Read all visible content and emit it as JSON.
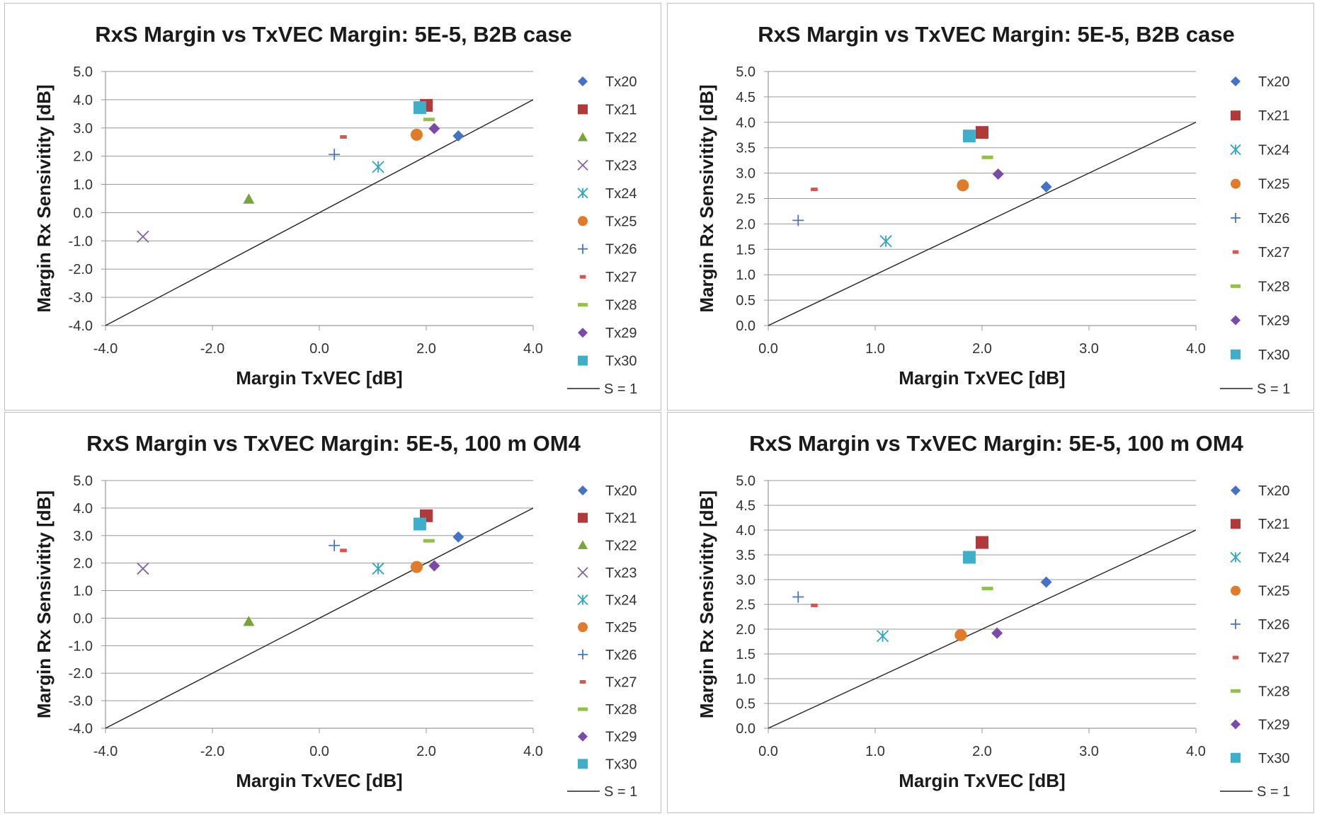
{
  "colors": {
    "Tx20": "#4472c4",
    "Tx21": "#b03a3a",
    "Tx22": "#7aa43a",
    "Tx23": "#8064a2",
    "Tx24": "#31a6bd",
    "Tx25": "#e07b2c",
    "Tx26": "#4a73c2",
    "Tx27": "#d9534f",
    "Tx28": "#92c04a",
    "Tx29": "#7a4aa8",
    "Tx30": "#3fafc9",
    "S1": "#222222",
    "grid": "#9a9a9a"
  },
  "markers": {
    "Tx20": "diamond",
    "Tx21": "square",
    "Tx22": "triangle",
    "Tx23": "x",
    "Tx24": "star",
    "Tx25": "circle",
    "Tx26": "plus",
    "Tx27": "dash-small",
    "Tx28": "dash",
    "Tx29": "diamond",
    "Tx30": "square"
  },
  "chart_data": [
    {
      "type": "scatter",
      "title": "RxS Margin vs TxVEC Margin: 5E-5, B2B case",
      "xlabel": "Margin TxVEC [dB]",
      "ylabel": "Margin Rx Sensivitity [dB]",
      "xlim": [
        -4,
        4
      ],
      "ylim": [
        -4,
        5
      ],
      "xticks": [
        "-4.0",
        "-2.0",
        "0.0",
        "2.0",
        "4.0"
      ],
      "yticks": [
        "-4.0",
        "-3.0",
        "-2.0",
        "-1.0",
        "0.0",
        "1.0",
        "2.0",
        "3.0",
        "4.0",
        "5.0"
      ],
      "grid": true,
      "legend_position": "right",
      "series": [
        {
          "name": "Tx20",
          "x": [
            2.6
          ],
          "y": [
            2.72
          ]
        },
        {
          "name": "Tx21",
          "x": [
            2.0
          ],
          "y": [
            3.8
          ]
        },
        {
          "name": "Tx22",
          "x": [
            -1.32
          ],
          "y": [
            0.48
          ]
        },
        {
          "name": "Tx23",
          "x": [
            -3.3
          ],
          "y": [
            -0.85
          ]
        },
        {
          "name": "Tx24",
          "x": [
            1.1
          ],
          "y": [
            1.62
          ]
        },
        {
          "name": "Tx25",
          "x": [
            1.82
          ],
          "y": [
            2.76
          ]
        },
        {
          "name": "Tx26",
          "x": [
            0.28
          ],
          "y": [
            2.06
          ]
        },
        {
          "name": "Tx27",
          "x": [
            0.45
          ],
          "y": [
            2.68
          ]
        },
        {
          "name": "Tx28",
          "x": [
            2.05
          ],
          "y": [
            3.3
          ]
        },
        {
          "name": "Tx29",
          "x": [
            2.15
          ],
          "y": [
            2.98
          ]
        },
        {
          "name": "Tx30",
          "x": [
            1.88
          ],
          "y": [
            3.72
          ]
        }
      ],
      "line": {
        "name": "S = 1",
        "x": [
          -4,
          4
        ],
        "y": [
          -4,
          4
        ]
      }
    },
    {
      "type": "scatter",
      "title": "RxS Margin vs TxVEC Margin: 5E-5, B2B case",
      "xlabel": "Margin TxVEC [dB]",
      "ylabel": "Margin Rx Sensivitity [dB]",
      "xlim": [
        0,
        4
      ],
      "ylim": [
        0,
        5
      ],
      "xticks": [
        "0.0",
        "1.0",
        "2.0",
        "3.0",
        "4.0"
      ],
      "yticks": [
        "0.0",
        "0.5",
        "1.0",
        "1.5",
        "2.0",
        "2.5",
        "3.0",
        "3.5",
        "4.0",
        "4.5",
        "5.0"
      ],
      "grid": true,
      "legend_position": "right",
      "series": [
        {
          "name": "Tx20",
          "x": [
            2.6
          ],
          "y": [
            2.73
          ]
        },
        {
          "name": "Tx21",
          "x": [
            2.0
          ],
          "y": [
            3.8
          ]
        },
        {
          "name": "Tx24",
          "x": [
            1.1
          ],
          "y": [
            1.66
          ]
        },
        {
          "name": "Tx25",
          "x": [
            1.82
          ],
          "y": [
            2.76
          ]
        },
        {
          "name": "Tx26",
          "x": [
            0.28
          ],
          "y": [
            2.07
          ]
        },
        {
          "name": "Tx27",
          "x": [
            0.43
          ],
          "y": [
            2.68
          ]
        },
        {
          "name": "Tx28",
          "x": [
            2.05
          ],
          "y": [
            3.31
          ]
        },
        {
          "name": "Tx29",
          "x": [
            2.15
          ],
          "y": [
            2.98
          ]
        },
        {
          "name": "Tx30",
          "x": [
            1.88
          ],
          "y": [
            3.73
          ]
        }
      ],
      "line": {
        "name": "S = 1",
        "x": [
          0,
          4
        ],
        "y": [
          0,
          4
        ]
      }
    },
    {
      "type": "scatter",
      "title": "RxS Margin vs TxVEC  Margin:  5E-5, 100 m OM4",
      "xlabel": "Margin TxVEC [dB]",
      "ylabel": "Margin Rx Sensivitity [dB]",
      "xlim": [
        -4,
        4
      ],
      "ylim": [
        -4,
        5
      ],
      "xticks": [
        "-4.0",
        "-2.0",
        "0.0",
        "2.0",
        "4.0"
      ],
      "yticks": [
        "-4.0",
        "-3.0",
        "-2.0",
        "-1.0",
        "0.0",
        "1.0",
        "2.0",
        "3.0",
        "4.0",
        "5.0"
      ],
      "grid": true,
      "legend_position": "right",
      "series": [
        {
          "name": "Tx20",
          "x": [
            2.6
          ],
          "y": [
            2.95
          ]
        },
        {
          "name": "Tx21",
          "x": [
            2.0
          ],
          "y": [
            3.72
          ]
        },
        {
          "name": "Tx22",
          "x": [
            -1.32
          ],
          "y": [
            -0.12
          ]
        },
        {
          "name": "Tx23",
          "x": [
            -3.3
          ],
          "y": [
            1.8
          ]
        },
        {
          "name": "Tx24",
          "x": [
            1.1
          ],
          "y": [
            1.8
          ]
        },
        {
          "name": "Tx25",
          "x": [
            1.82
          ],
          "y": [
            1.86
          ]
        },
        {
          "name": "Tx26",
          "x": [
            0.28
          ],
          "y": [
            2.64
          ]
        },
        {
          "name": "Tx27",
          "x": [
            0.45
          ],
          "y": [
            2.46
          ]
        },
        {
          "name": "Tx28",
          "x": [
            2.05
          ],
          "y": [
            2.81
          ]
        },
        {
          "name": "Tx29",
          "x": [
            2.15
          ],
          "y": [
            1.9
          ]
        },
        {
          "name": "Tx30",
          "x": [
            1.88
          ],
          "y": [
            3.42
          ]
        }
      ],
      "line": {
        "name": "S = 1",
        "x": [
          -4,
          4
        ],
        "y": [
          -4,
          4
        ]
      }
    },
    {
      "type": "scatter",
      "title": "RxS Margin vs TxVEC  Margin:  5E-5, 100 m OM4",
      "xlabel": "Margin TxVEC [dB]",
      "ylabel": "Margin Rx Sensivitity [dB]",
      "xlim": [
        0,
        4
      ],
      "ylim": [
        0,
        5
      ],
      "xticks": [
        "0.0",
        "1.0",
        "2.0",
        "3.0",
        "4.0"
      ],
      "yticks": [
        "0.0",
        "0.5",
        "1.0",
        "1.5",
        "2.0",
        "2.5",
        "3.0",
        "3.5",
        "4.0",
        "4.5",
        "5.0"
      ],
      "grid": true,
      "legend_position": "right",
      "series": [
        {
          "name": "Tx20",
          "x": [
            2.6
          ],
          "y": [
            2.95
          ]
        },
        {
          "name": "Tx21",
          "x": [
            2.0
          ],
          "y": [
            3.75
          ]
        },
        {
          "name": "Tx24",
          "x": [
            1.07
          ],
          "y": [
            1.86
          ]
        },
        {
          "name": "Tx25",
          "x": [
            1.8
          ],
          "y": [
            1.88
          ]
        },
        {
          "name": "Tx26",
          "x": [
            0.28
          ],
          "y": [
            2.65
          ]
        },
        {
          "name": "Tx27",
          "x": [
            0.43
          ],
          "y": [
            2.48
          ]
        },
        {
          "name": "Tx28",
          "x": [
            2.05
          ],
          "y": [
            2.82
          ]
        },
        {
          "name": "Tx29",
          "x": [
            2.14
          ],
          "y": [
            1.92
          ]
        },
        {
          "name": "Tx30",
          "x": [
            1.88
          ],
          "y": [
            3.45
          ]
        }
      ],
      "line": {
        "name": "S = 1",
        "x": [
          0,
          4
        ],
        "y": [
          0,
          4
        ]
      }
    }
  ]
}
